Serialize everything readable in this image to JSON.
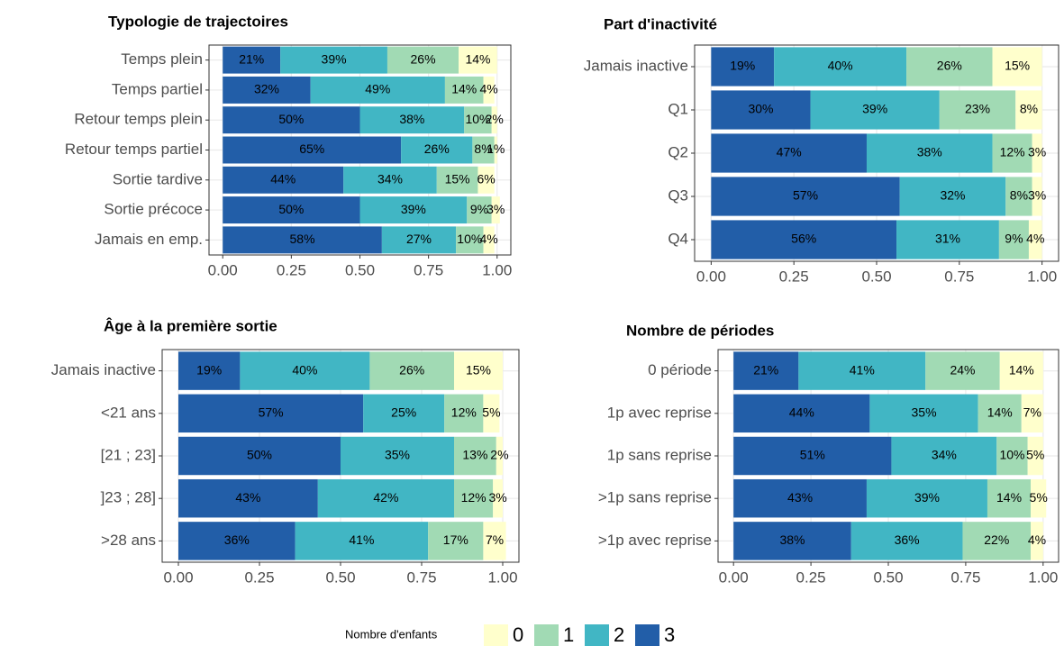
{
  "legend": {
    "title": "Nombre d'enfants",
    "items": [
      "0",
      "1",
      "2",
      "3"
    ],
    "colors": [
      "#ffffcc",
      "#a1dab4",
      "#41b6c4",
      "#225ea8"
    ]
  },
  "chart_data": [
    {
      "type": "bar",
      "orientation": "horizontal",
      "stacked": true,
      "title": "Typologie de trajectoires",
      "categories": [
        "Temps plein",
        "Temps partiel",
        "Retour temps plein",
        "Retour temps partiel",
        "Sortie tardive",
        "Sortie précoce",
        "Jamais en emp."
      ],
      "series": [
        {
          "values": [
            0.14,
            0.04,
            0.02,
            0.01,
            0.06,
            0.03,
            0.04
          ],
          "value_labels": [
            "14%",
            "4%",
            "2%",
            "1%",
            "6%",
            "3%",
            "4%"
          ]
        },
        {
          "values": [
            0.26,
            0.14,
            0.1,
            0.08,
            0.15,
            0.09,
            0.1
          ],
          "value_labels": [
            "26%",
            "14%",
            "10%",
            "8%",
            "15%",
            "9%",
            "10%"
          ]
        },
        {
          "values": [
            0.39,
            0.49,
            0.38,
            0.26,
            0.34,
            0.39,
            0.27
          ],
          "value_labels": [
            "39%",
            "49%",
            "38%",
            "26%",
            "34%",
            "39%",
            "27%"
          ]
        },
        {
          "values": [
            0.21,
            0.32,
            0.5,
            0.65,
            0.44,
            0.5,
            0.58
          ],
          "value_labels": [
            "21%",
            "32%",
            "50%",
            "65%",
            "44%",
            "50%",
            "58%"
          ]
        }
      ],
      "xlim": [
        -0.05,
        1.05
      ],
      "xticks": [
        {
          "value": 0,
          "label": "0.00"
        },
        {
          "value": 0.25,
          "label": "0.25"
        },
        {
          "value": 0.5,
          "label": "0.50"
        },
        {
          "value": 0.75,
          "label": "0.75"
        },
        {
          "value": 1,
          "label": "1.00"
        }
      ],
      "grid": true
    },
    {
      "type": "bar",
      "orientation": "horizontal",
      "stacked": true,
      "title": "Part d'inactivité",
      "categories": [
        "Jamais inactive",
        "Q1",
        "Q2",
        "Q3",
        "Q4"
      ],
      "series": [
        {
          "values": [
            0.15,
            0.08,
            0.03,
            0.03,
            0.04
          ],
          "value_labels": [
            "15%",
            "8%",
            "3%",
            "3%",
            "4%"
          ]
        },
        {
          "values": [
            0.26,
            0.23,
            0.12,
            0.08,
            0.09
          ],
          "value_labels": [
            "26%",
            "23%",
            "12%",
            "8%",
            "9%"
          ]
        },
        {
          "values": [
            0.4,
            0.39,
            0.38,
            0.32,
            0.31
          ],
          "value_labels": [
            "40%",
            "39%",
            "38%",
            "32%",
            "31%"
          ]
        },
        {
          "values": [
            0.19,
            0.3,
            0.47,
            0.57,
            0.56
          ],
          "value_labels": [
            "19%",
            "30%",
            "47%",
            "57%",
            "56%"
          ]
        }
      ],
      "xlim": [
        -0.05,
        1.05
      ],
      "xticks": [
        {
          "value": 0,
          "label": "0.00"
        },
        {
          "value": 0.25,
          "label": "0.25"
        },
        {
          "value": 0.5,
          "label": "0.50"
        },
        {
          "value": 0.75,
          "label": "0.75"
        },
        {
          "value": 1,
          "label": "1.00"
        }
      ],
      "grid": true
    },
    {
      "type": "bar",
      "orientation": "horizontal",
      "stacked": true,
      "title": "Âge à la première sortie",
      "categories": [
        "Jamais inactive",
        "<21 ans",
        "[21 ; 23]",
        "]23 ; 28]",
        ">28 ans"
      ],
      "series": [
        {
          "values": [
            0.15,
            0.05,
            0.02,
            0.03,
            0.07
          ],
          "value_labels": [
            "15%",
            "5%",
            "2%",
            "3%",
            "7%"
          ]
        },
        {
          "values": [
            0.26,
            0.12,
            0.13,
            0.12,
            0.17
          ],
          "value_labels": [
            "26%",
            "12%",
            "13%",
            "12%",
            "17%"
          ]
        },
        {
          "values": [
            0.4,
            0.25,
            0.35,
            0.42,
            0.41
          ],
          "value_labels": [
            "40%",
            "25%",
            "35%",
            "42%",
            "41%"
          ]
        },
        {
          "values": [
            0.19,
            0.57,
            0.5,
            0.43,
            0.36
          ],
          "value_labels": [
            "19%",
            "57%",
            "50%",
            "43%",
            "36%"
          ]
        }
      ],
      "xlim": [
        -0.05,
        1.05
      ],
      "xticks": [
        {
          "value": 0,
          "label": "0.00"
        },
        {
          "value": 0.25,
          "label": "0.25"
        },
        {
          "value": 0.5,
          "label": "0.50"
        },
        {
          "value": 0.75,
          "label": "0.75"
        },
        {
          "value": 1,
          "label": "1.00"
        }
      ],
      "grid": true
    },
    {
      "type": "bar",
      "orientation": "horizontal",
      "stacked": true,
      "title": "Nombre de périodes",
      "categories": [
        "0 période",
        "1p avec reprise",
        "1p sans reprise",
        ">1p sans reprise",
        ">1p avec reprise"
      ],
      "series": [
        {
          "values": [
            0.14,
            0.07,
            0.05,
            0.05,
            0.04
          ],
          "value_labels": [
            "14%",
            "7%",
            "5%",
            "5%",
            "4%"
          ]
        },
        {
          "values": [
            0.24,
            0.14,
            0.1,
            0.14,
            0.22
          ],
          "value_labels": [
            "24%",
            "14%",
            "10%",
            "14%",
            "22%"
          ]
        },
        {
          "values": [
            0.41,
            0.35,
            0.34,
            0.39,
            0.36
          ],
          "value_labels": [
            "41%",
            "35%",
            "34%",
            "39%",
            "36%"
          ]
        },
        {
          "values": [
            0.21,
            0.44,
            0.51,
            0.43,
            0.38
          ],
          "value_labels": [
            "21%",
            "44%",
            "51%",
            "43%",
            "38%"
          ]
        }
      ],
      "xlim": [
        -0.05,
        1.05
      ],
      "xticks": [
        {
          "value": 0,
          "label": "0.00"
        },
        {
          "value": 0.25,
          "label": "0.25"
        },
        {
          "value": 0.5,
          "label": "0.50"
        },
        {
          "value": 0.75,
          "label": "0.75"
        },
        {
          "value": 1,
          "label": "1.00"
        }
      ],
      "grid": true
    }
  ]
}
